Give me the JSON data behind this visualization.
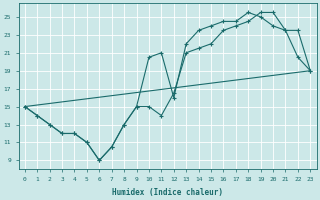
{
  "xlabel": "Humidex (Indice chaleur)",
  "bg_color": "#cce8e8",
  "line_color": "#1a6b6b",
  "grid_color": "#b8d8d8",
  "xlim": [
    -0.5,
    23.5
  ],
  "ylim": [
    8,
    26.5
  ],
  "yticks": [
    9,
    11,
    13,
    15,
    17,
    19,
    21,
    23,
    25
  ],
  "xticks": [
    0,
    1,
    2,
    3,
    4,
    5,
    6,
    7,
    8,
    9,
    10,
    11,
    12,
    13,
    14,
    15,
    16,
    17,
    18,
    19,
    20,
    21,
    22,
    23
  ],
  "line1_x": [
    0,
    1,
    2,
    3,
    4,
    5,
    6,
    7,
    8,
    9,
    10,
    11,
    12,
    13,
    14,
    15,
    16,
    17,
    18,
    19,
    20,
    21,
    22,
    23
  ],
  "line1_y": [
    15,
    14,
    13,
    12,
    12,
    11,
    9,
    10.5,
    13,
    15,
    15,
    14,
    16.5,
    21,
    21.5,
    22,
    23.5,
    24,
    24.5,
    25.5,
    25.5,
    23.5,
    20.5,
    19
  ],
  "line2_x": [
    0,
    1,
    2,
    3,
    4,
    5,
    6,
    7,
    8,
    9,
    10,
    11,
    12,
    13,
    14,
    15,
    16,
    17,
    18,
    19,
    20,
    21,
    22,
    23
  ],
  "line2_y": [
    15,
    14,
    13,
    12,
    12,
    11,
    9,
    10.5,
    13,
    15,
    20.5,
    21,
    16,
    22,
    23.5,
    24,
    24.5,
    24.5,
    25.5,
    25,
    24,
    23.5,
    23.5,
    19
  ],
  "line3_x": [
    0,
    23
  ],
  "line3_y": [
    15,
    19
  ]
}
